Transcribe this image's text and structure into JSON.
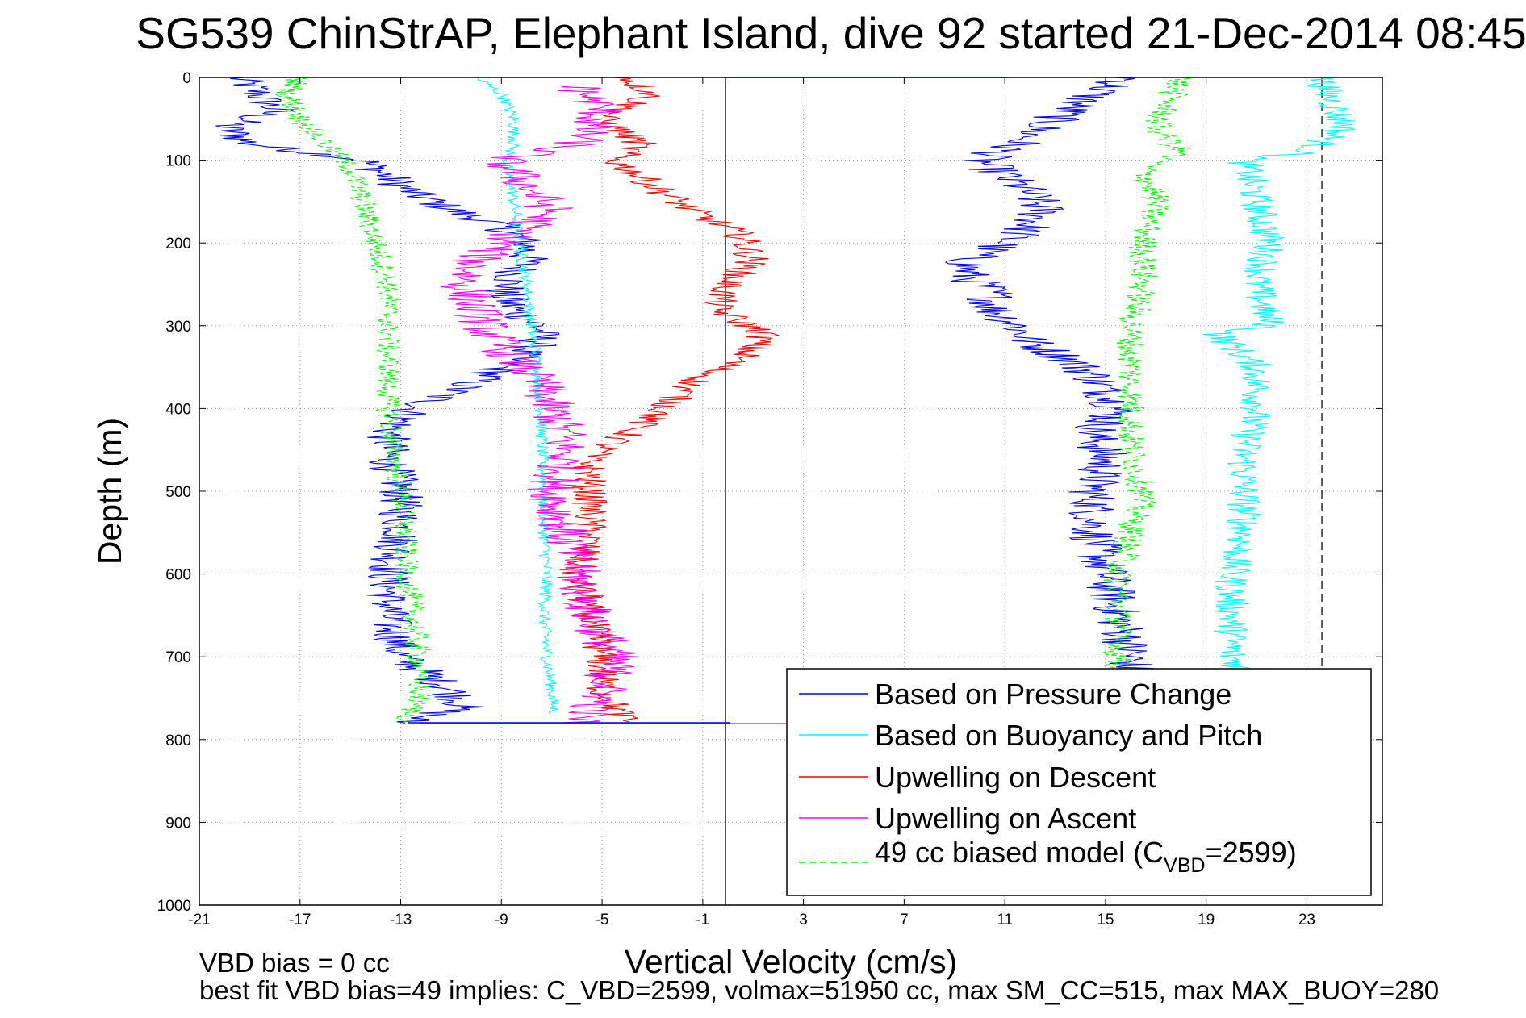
{
  "chart_data": {
    "type": "line",
    "title": "SG539 ChinStrAP, Elephant Island, dive 92 started 21-Dec-2014 08:45",
    "xlabel": "Vertical Velocity (cm/s)",
    "ylabel": "Depth (m)",
    "xlim": [
      -21,
      26
    ],
    "ylim": [
      1000,
      0
    ],
    "x_ticks": [
      -21,
      -17,
      -13,
      -9,
      -5,
      -1,
      3,
      7,
      11,
      15,
      19,
      23
    ],
    "y_ticks": [
      0,
      100,
      200,
      300,
      400,
      500,
      600,
      700,
      800,
      900,
      1000
    ],
    "grid": true,
    "legend_position": "bottom-right",
    "zero_line_x": -0.1,
    "reference_dashed_x": 23.6,
    "series": [
      {
        "name": "Based on Pressure Change",
        "color": "#0000ff",
        "dash": "solid",
        "noise": 0.9,
        "depth": [
          0,
          10,
          40,
          60,
          80,
          100,
          120,
          140,
          160,
          180,
          200,
          220,
          240,
          260,
          280,
          300,
          320,
          340,
          360,
          380,
          400,
          430,
          460,
          500,
          550,
          600,
          650,
          700,
          740,
          760,
          780
        ],
        "velocity": [
          -19.5,
          -19.0,
          -18.0,
          -20.0,
          -19.0,
          -14.5,
          -13.5,
          -12.5,
          -11.0,
          -9.0,
          -8.0,
          -8.0,
          -8.5,
          -9.0,
          -8.5,
          -7.5,
          -7.5,
          -8.5,
          -9.5,
          -11.0,
          -12.5,
          -13.5,
          -13.5,
          -13.0,
          -13.0,
          -13.5,
          -13.5,
          -13.0,
          -11.0,
          -10.5,
          -13.0
        ]
      },
      {
        "name": "Based on Pressure Change",
        "color": "#0000ff",
        "dash": "solid",
        "noise": 1.0,
        "depth": [
          0,
          20,
          50,
          80,
          100,
          120,
          140,
          160,
          180,
          200,
          220,
          240,
          260,
          280,
          300,
          320,
          340,
          360,
          380,
          400,
          430,
          460,
          500,
          550,
          600,
          650,
          700,
          720
        ],
        "velocity": [
          16.0,
          14.5,
          13.0,
          11.5,
          10.0,
          11.0,
          12.0,
          12.5,
          12.0,
          11.0,
          9.5,
          9.5,
          10.5,
          10.5,
          11.5,
          12.0,
          13.5,
          14.5,
          15.0,
          15.5,
          14.5,
          15.0,
          14.5,
          14.5,
          15.0,
          15.5,
          16.0,
          16.0
        ]
      },
      {
        "name": "Based on Buoyancy and Pitch",
        "color": "#00ffff",
        "dash": "solid",
        "noise": 0.25,
        "depth": [
          0,
          20,
          50,
          80,
          100,
          150,
          200,
          250,
          300,
          350,
          400,
          450,
          500,
          550,
          600,
          650,
          700,
          740,
          770
        ],
        "velocity": [
          -10.0,
          -9.0,
          -8.5,
          -8.5,
          -8.8,
          -8.5,
          -8.3,
          -8.0,
          -7.8,
          -7.6,
          -7.4,
          -7.4,
          -7.3,
          -7.3,
          -7.2,
          -7.3,
          -7.2,
          -7.0,
          -6.9
        ]
      },
      {
        "name": "Based on Buoyancy and Pitch",
        "color": "#00ffff",
        "dash": "solid",
        "noise": 0.7,
        "depth": [
          0,
          30,
          60,
          90,
          100,
          150,
          200,
          250,
          300,
          310,
          350,
          400,
          450,
          500,
          550,
          600,
          650,
          700,
          720
        ],
        "velocity": [
          23.5,
          24.0,
          24.5,
          23.0,
          20.5,
          21.0,
          21.5,
          21.0,
          21.5,
          19.5,
          21.0,
          21.0,
          20.5,
          20.5,
          20.5,
          20.0,
          20.0,
          20.0,
          20.5
        ]
      },
      {
        "name": "Upwelling on Descent",
        "color": "#ff0000",
        "dash": "solid",
        "noise": 0.7,
        "depth": [
          0,
          20,
          50,
          80,
          100,
          130,
          160,
          190,
          220,
          250,
          280,
          310,
          340,
          370,
          400,
          430,
          460,
          500,
          550,
          600,
          650,
          700,
          740,
          780
        ],
        "velocity": [
          -4.0,
          -3.0,
          -5.0,
          -3.5,
          -4.5,
          -3.0,
          -1.5,
          0.5,
          1.0,
          0.0,
          -0.5,
          1.5,
          0.5,
          -1.5,
          -2.5,
          -4.0,
          -5.5,
          -5.5,
          -5.5,
          -6.0,
          -5.5,
          -5.0,
          -5.0,
          -4.0
        ]
      },
      {
        "name": "Upwelling on Ascent",
        "color": "#ff00ff",
        "dash": "solid",
        "noise": 1.0,
        "depth": [
          10,
          40,
          80,
          100,
          130,
          160,
          190,
          220,
          250,
          280,
          310,
          340,
          370,
          400,
          430,
          460,
          500,
          550,
          600,
          650,
          700,
          750,
          780
        ],
        "velocity": [
          -6.0,
          -5.0,
          -6.0,
          -9.0,
          -8.0,
          -7.0,
          -8.5,
          -10.0,
          -10.5,
          -10.0,
          -9.5,
          -8.5,
          -7.5,
          -7.0,
          -6.5,
          -6.5,
          -7.0,
          -6.5,
          -6.0,
          -5.5,
          -4.5,
          -5.0,
          -6.0
        ]
      },
      {
        "name": "49 cc biased model (C_VBD=2599)",
        "color": "#00ff00",
        "dash": "dashed",
        "noise": 0.5,
        "depth": [
          0,
          20,
          50,
          80,
          110,
          150,
          200,
          250,
          300,
          350,
          400,
          450,
          500,
          550,
          600,
          650,
          700,
          750,
          780
        ],
        "velocity": [
          -17.0,
          -17.5,
          -17.0,
          -16.0,
          -15.0,
          -14.5,
          -14.0,
          -13.5,
          -13.5,
          -13.5,
          -13.5,
          -13.3,
          -13.0,
          -12.8,
          -12.8,
          -12.5,
          -12.3,
          -12.3,
          -12.8
        ]
      },
      {
        "name": "49 cc biased model (C_VBD=2599)",
        "color": "#00ff00",
        "dash": "dashed",
        "noise": 0.6,
        "depth": [
          0,
          30,
          60,
          90,
          110,
          150,
          200,
          250,
          300,
          350,
          400,
          450,
          500,
          550,
          600,
          650,
          700,
          720
        ],
        "velocity": [
          18.0,
          17.5,
          17.0,
          18.0,
          16.5,
          17.0,
          16.5,
          16.5,
          16.0,
          16.0,
          16.0,
          16.0,
          16.5,
          16.0,
          15.5,
          15.5,
          15.5,
          15.5
        ]
      }
    ],
    "legend": [
      {
        "label": "Based on Pressure Change",
        "color": "#0000ff",
        "dash": "solid"
      },
      {
        "label": "Based on Buoyancy and Pitch",
        "color": "#00ffff",
        "dash": "solid"
      },
      {
        "label": "Upwelling on Descent",
        "color": "#ff0000",
        "dash": "solid"
      },
      {
        "label": "Upwelling on Ascent",
        "color": "#ff00ff",
        "dash": "solid"
      },
      {
        "label_main": "49 cc biased model (C",
        "label_sub": "VBD",
        "label_end": "=2599)",
        "color": "#00ff00",
        "dash": "dashed"
      }
    ]
  },
  "footer": {
    "line1": "VBD bias = 0 cc",
    "line2": "best fit VBD bias=49 implies: C_VBD=2599, volmax=51950 cc, max SM_CC=515, max MAX_BUOY=280"
  }
}
